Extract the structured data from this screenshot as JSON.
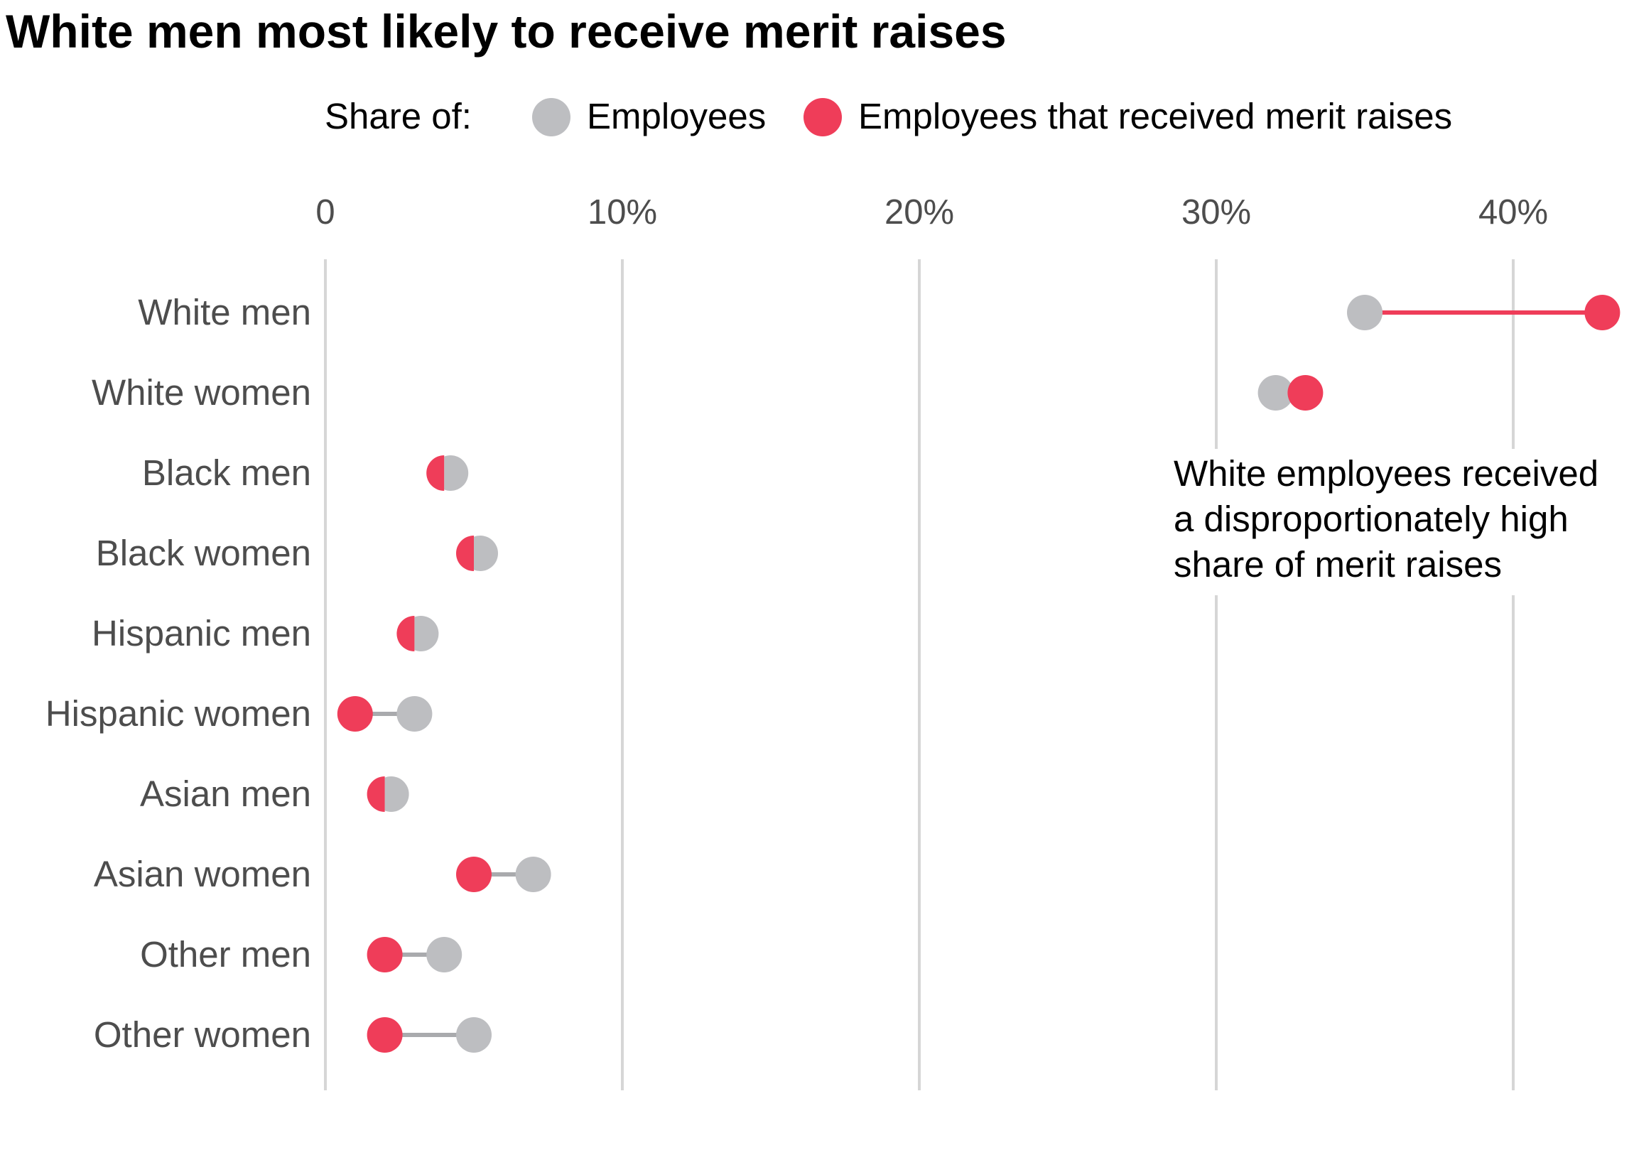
{
  "chart_data": {
    "type": "dumbbell",
    "title": "White men most likely to receive merit raises",
    "legend": {
      "prefix": "Share of:",
      "placement": "top",
      "items": [
        {
          "label": "Employees",
          "color": "#BDBEC1"
        },
        {
          "label": "Employees that received merit raises",
          "color": "#EF3D59"
        }
      ]
    },
    "x_axis": {
      "range": [
        0,
        43
      ],
      "unit": "percent",
      "ticks": [
        {
          "value": 0,
          "label": "0"
        },
        {
          "value": 10,
          "label": "10%"
        },
        {
          "value": 20,
          "label": "20%"
        },
        {
          "value": 30,
          "label": "30%"
        },
        {
          "value": 40,
          "label": "40%"
        }
      ],
      "grid": true
    },
    "categories": [
      "White men",
      "White women",
      "Black men",
      "Black women",
      "Hispanic men",
      "Hispanic women",
      "Asian men",
      "Asian women",
      "Other men",
      "Other women"
    ],
    "series": [
      {
        "name": "Employees",
        "values": [
          35,
          32,
          4,
          5,
          3,
          3,
          2,
          7,
          4,
          5
        ]
      },
      {
        "name": "Employees that received merit raises",
        "values": [
          43,
          33,
          4,
          5,
          3,
          1,
          2,
          5,
          2,
          2
        ]
      }
    ],
    "annotation": {
      "lines": [
        "White employees received",
        "a disproportionately high",
        "share of merit raises"
      ]
    },
    "colors": {
      "employees": "#BDBEC1",
      "merit": "#EF3D59",
      "connector_gray": "#A9AAAD",
      "connector_red": "#EF3D59",
      "grid": "#D6D6D6",
      "label_text": "#4D4D4D"
    }
  }
}
